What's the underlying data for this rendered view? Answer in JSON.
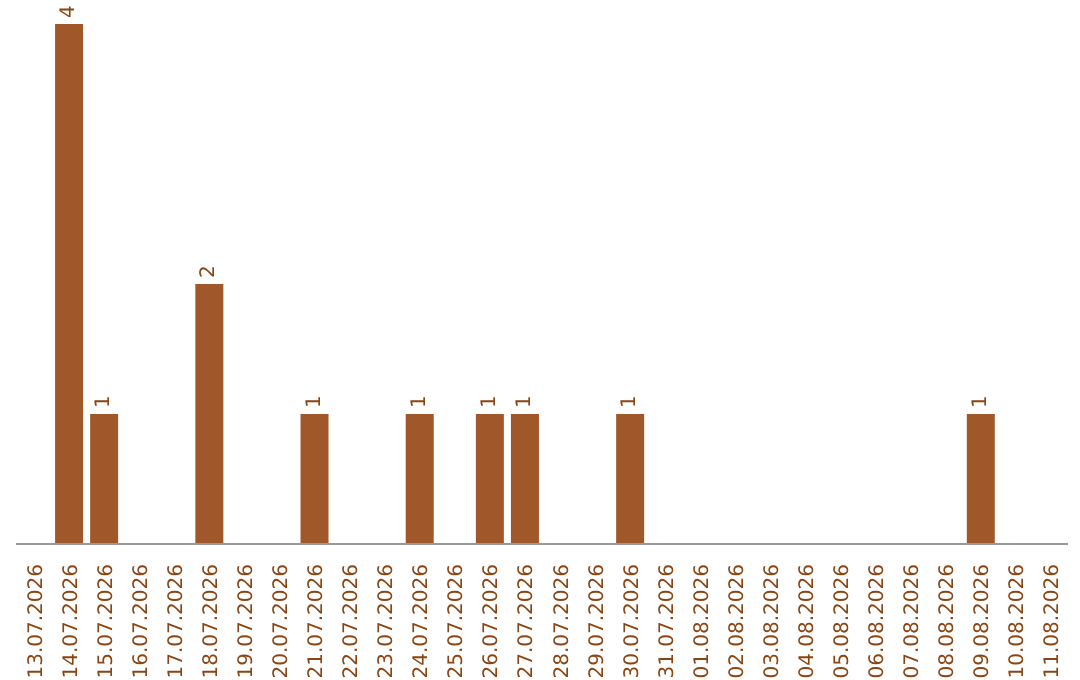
{
  "chart_data": {
    "type": "bar",
    "categories": [
      "13.07.2026",
      "14.07.2026",
      "15.07.2026",
      "16.07.2026",
      "17.07.2026",
      "18.07.2026",
      "19.07.2026",
      "20.07.2026",
      "21.07.2026",
      "22.07.2026",
      "23.07.2026",
      "24.07.2026",
      "25.07.2026",
      "26.07.2026",
      "27.07.2026",
      "28.07.2026",
      "29.07.2026",
      "30.07.2026",
      "31.07.2026",
      "01.08.2026",
      "02.08.2026",
      "03.08.2026",
      "04.08.2026",
      "05.08.2026",
      "06.08.2026",
      "07.08.2026",
      "08.08.2026",
      "09.08.2026",
      "10.08.2026",
      "11.08.2026"
    ],
    "values": [
      0,
      4,
      1,
      0,
      0,
      2,
      0,
      0,
      1,
      0,
      0,
      1,
      0,
      1,
      1,
      0,
      0,
      1,
      0,
      0,
      0,
      0,
      0,
      0,
      0,
      0,
      0,
      1,
      0,
      0
    ],
    "value_labels": [
      null,
      "4",
      "1",
      null,
      null,
      "2",
      null,
      null,
      "1",
      null,
      null,
      "1",
      null,
      "1",
      "1",
      null,
      null,
      "1",
      null,
      null,
      null,
      null,
      null,
      null,
      null,
      null,
      null,
      "1",
      null,
      null
    ],
    "color": "#a0582a",
    "grid": false,
    "legend": false
  }
}
